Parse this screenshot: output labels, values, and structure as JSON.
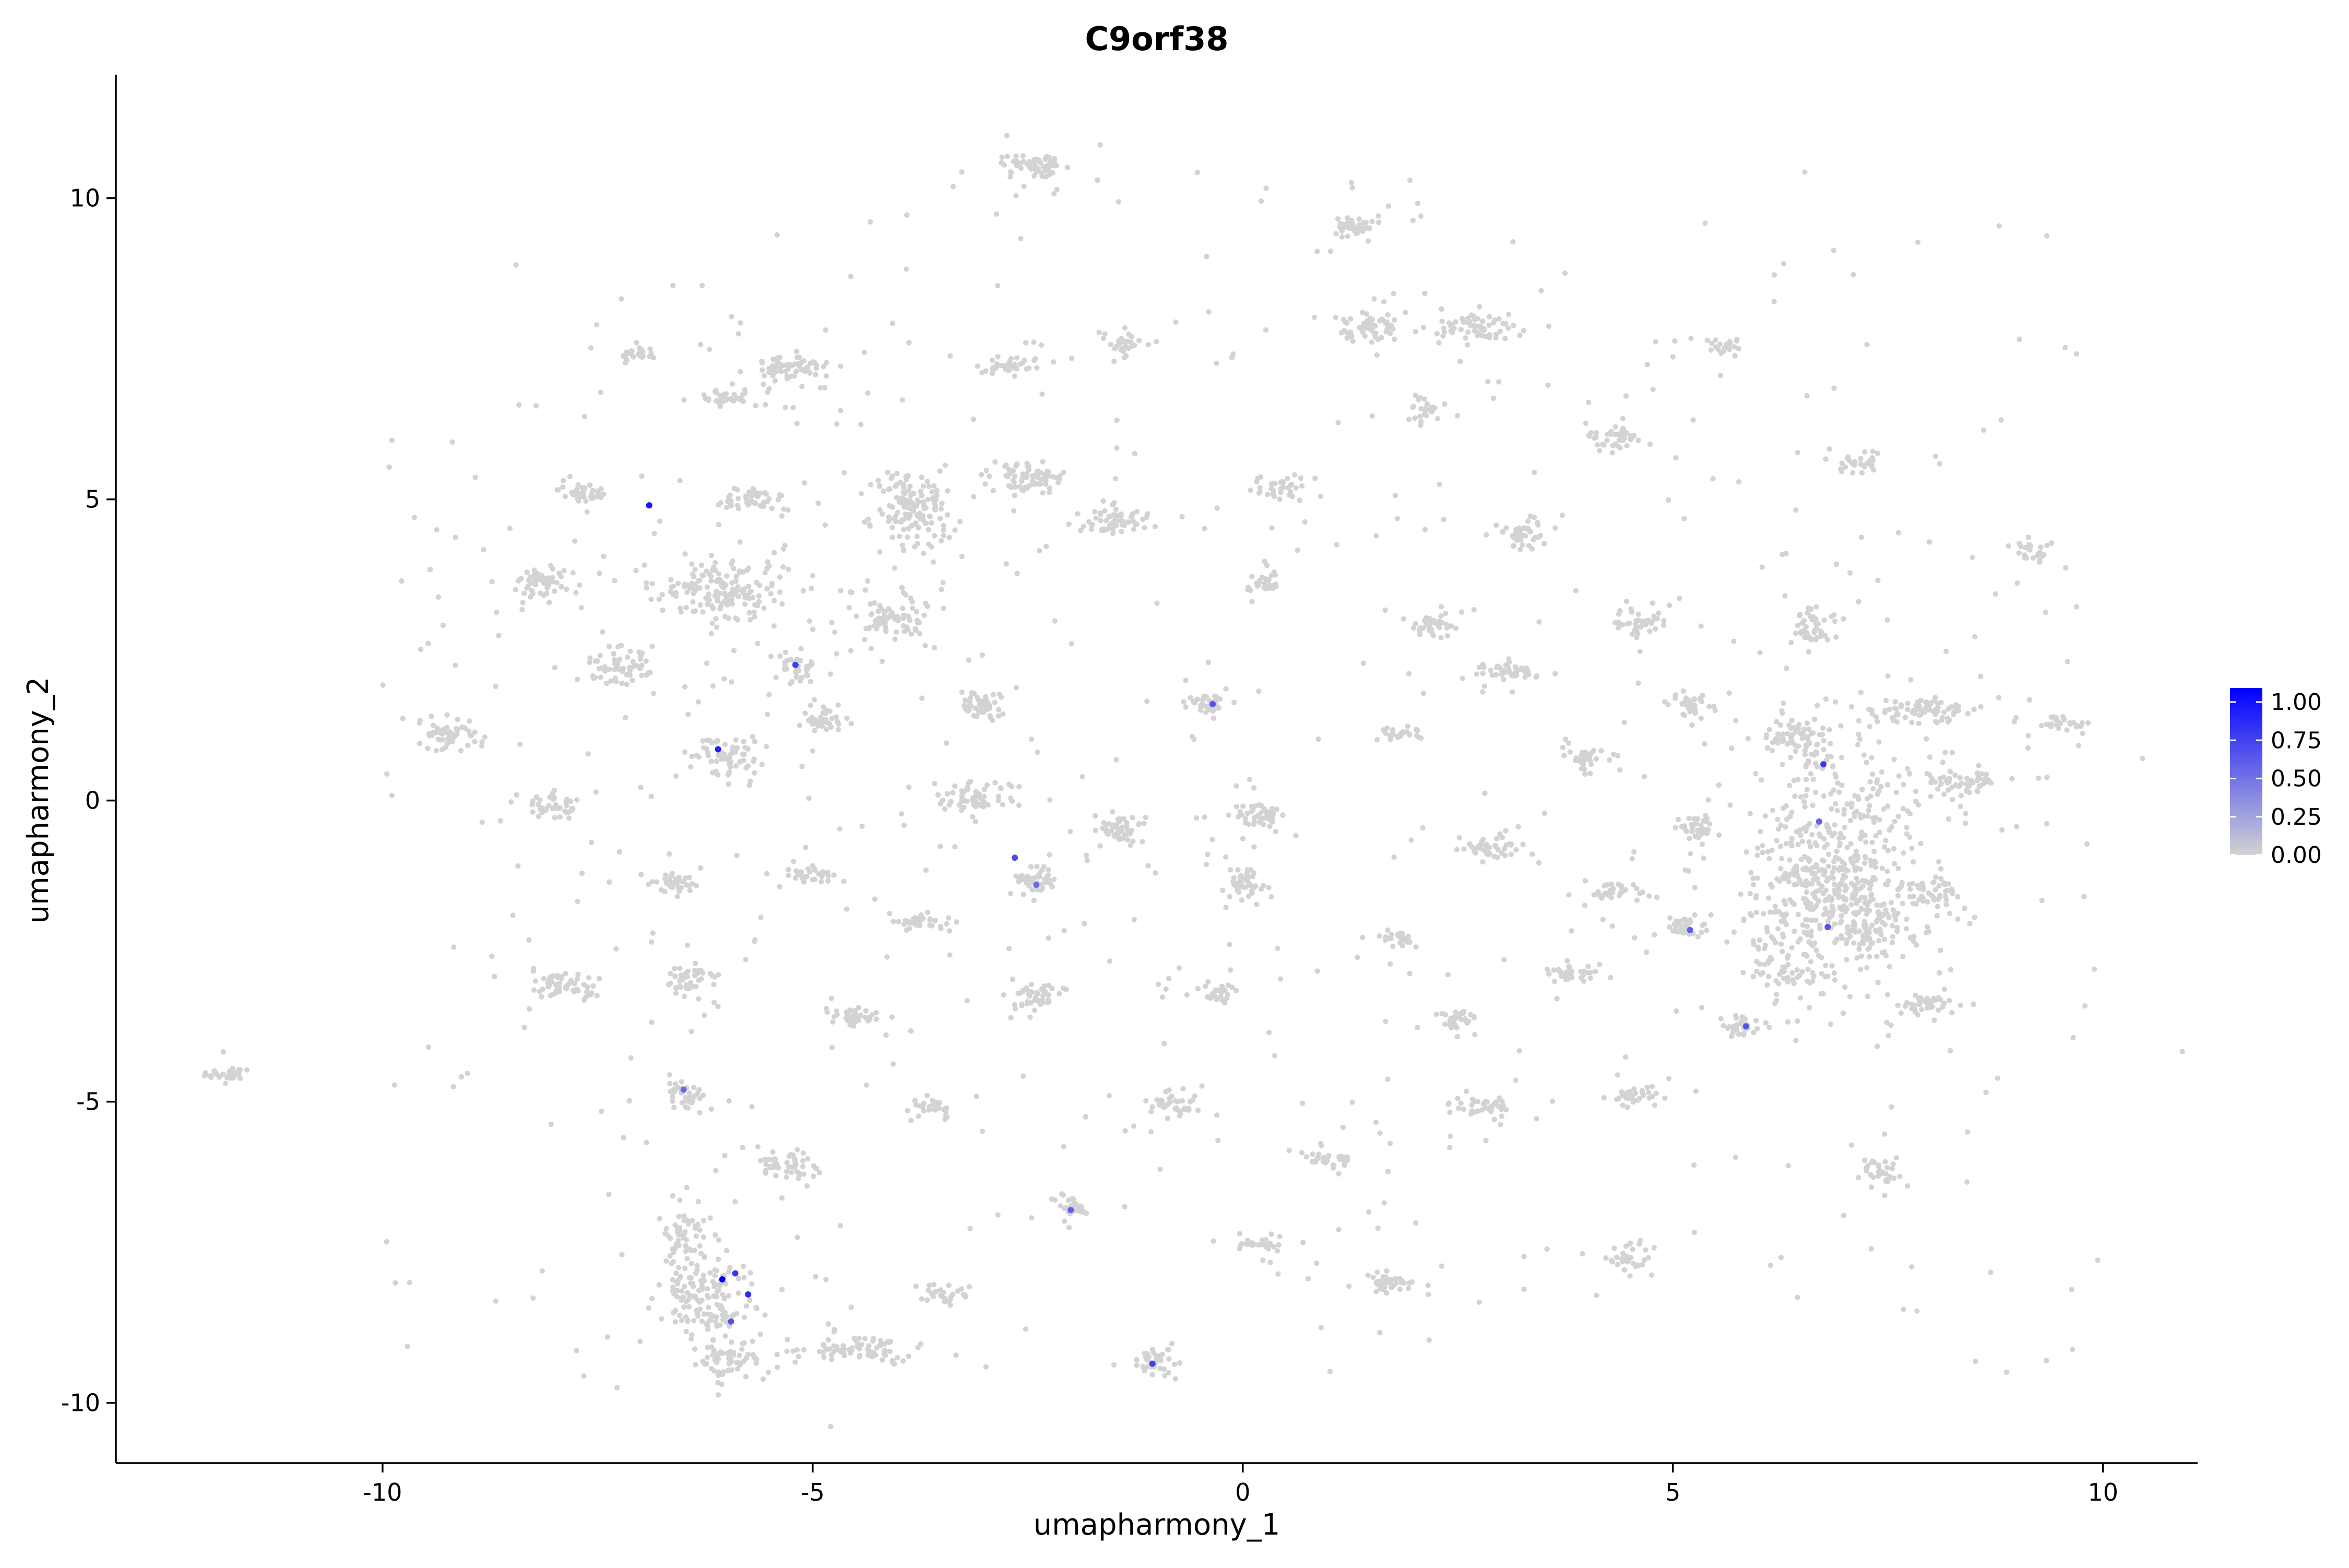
{
  "chart_data": {
    "type": "scatter",
    "title": "C9orf38",
    "xlabel": "umapharmony_1",
    "ylabel": "umapharmony_2",
    "xlim": [
      -13.1,
      11.1
    ],
    "ylim": [
      -11.0,
      12.05
    ],
    "x_ticks": [
      -10,
      -5,
      0,
      5,
      10
    ],
    "x_tick_labels": [
      "-10",
      "-5",
      "0",
      "5",
      "10"
    ],
    "y_ticks": [
      -10,
      -5,
      0,
      5,
      10
    ],
    "y_tick_labels": [
      "-10",
      "-5",
      "0",
      "5",
      "10"
    ],
    "grid": false,
    "legend": {
      "placement": "right",
      "ticks": [
        1.0,
        0.75,
        0.5,
        0.25,
        0.0
      ],
      "tick_labels": [
        "1.00",
        "0.75",
        "0.50",
        "0.25",
        "0.00"
      ],
      "range": [
        0,
        1.0
      ],
      "low_color": "#d3d3d3",
      "high_color": "#0000ff"
    },
    "colors": {
      "low": "#d3d3d3",
      "high": "#0000ff"
    },
    "clusters": [
      {
        "cx": -11.8,
        "cy": -4.55,
        "sx": 0.12,
        "sy": 0.07,
        "n": 30
      },
      {
        "cx": -9.25,
        "cy": 1.05,
        "sx": 0.2,
        "sy": 0.12,
        "n": 50
      },
      {
        "cx": -8.1,
        "cy": 3.6,
        "sx": 0.15,
        "sy": 0.15,
        "n": 55
      },
      {
        "cx": -8.0,
        "cy": -0.1,
        "sx": 0.15,
        "sy": 0.1,
        "n": 40
      },
      {
        "cx": -7.9,
        "cy": -3.1,
        "sx": 0.2,
        "sy": 0.12,
        "n": 55
      },
      {
        "cx": -7.7,
        "cy": 5.1,
        "sx": 0.12,
        "sy": 0.07,
        "n": 35
      },
      {
        "cx": -7.3,
        "cy": 2.25,
        "sx": 0.2,
        "sy": 0.15,
        "n": 60
      },
      {
        "cx": -7.0,
        "cy": 7.4,
        "sx": 0.13,
        "sy": 0.06,
        "n": 25
      },
      {
        "cx": -6.6,
        "cy": -1.4,
        "sx": 0.12,
        "sy": 0.1,
        "n": 35
      },
      {
        "cx": -6.4,
        "cy": -3.0,
        "sx": 0.15,
        "sy": 0.15,
        "n": 45
      },
      {
        "cx": -6.5,
        "cy": -4.9,
        "sx": 0.12,
        "sy": 0.12,
        "n": 35
      },
      {
        "cx": -6.1,
        "cy": 3.5,
        "sx": 0.35,
        "sy": 0.25,
        "n": 170
      },
      {
        "cx": -6.0,
        "cy": 0.7,
        "sx": 0.2,
        "sy": 0.18,
        "n": 60
      },
      {
        "cx": -6.0,
        "cy": 6.7,
        "sx": 0.2,
        "sy": 0.08,
        "n": 35
      },
      {
        "cx": -5.7,
        "cy": 5.0,
        "sx": 0.15,
        "sy": 0.1,
        "n": 45
      },
      {
        "cx": -6.2,
        "cy": -8.2,
        "sx": 0.25,
        "sy": 0.35,
        "n": 140
      },
      {
        "cx": -6.5,
        "cy": -7.2,
        "sx": 0.1,
        "sy": 0.3,
        "n": 50
      },
      {
        "cx": -6.0,
        "cy": -9.3,
        "sx": 0.2,
        "sy": 0.15,
        "n": 55
      },
      {
        "cx": -5.3,
        "cy": 7.2,
        "sx": 0.22,
        "sy": 0.12,
        "n": 60
      },
      {
        "cx": -5.2,
        "cy": 2.2,
        "sx": 0.12,
        "sy": 0.12,
        "n": 35
      },
      {
        "cx": -5.0,
        "cy": -1.2,
        "sx": 0.12,
        "sy": 0.07,
        "n": 30
      },
      {
        "cx": -5.3,
        "cy": -6.05,
        "sx": 0.2,
        "sy": 0.12,
        "n": 45
      },
      {
        "cx": -4.5,
        "cy": -9.1,
        "sx": 0.35,
        "sy": 0.12,
        "n": 75
      },
      {
        "cx": -4.9,
        "cy": 1.3,
        "sx": 0.12,
        "sy": 0.12,
        "n": 35
      },
      {
        "cx": -4.5,
        "cy": -3.6,
        "sx": 0.13,
        "sy": 0.08,
        "n": 35
      },
      {
        "cx": -4.1,
        "cy": 3.0,
        "sx": 0.22,
        "sy": 0.18,
        "n": 75
      },
      {
        "cx": -3.85,
        "cy": 4.85,
        "sx": 0.25,
        "sy": 0.35,
        "n": 150
      },
      {
        "cx": -3.7,
        "cy": -2.0,
        "sx": 0.15,
        "sy": 0.07,
        "n": 35
      },
      {
        "cx": -3.6,
        "cy": -5.1,
        "sx": 0.1,
        "sy": 0.08,
        "n": 25
      },
      {
        "cx": -3.5,
        "cy": -8.2,
        "sx": 0.13,
        "sy": 0.07,
        "n": 25
      },
      {
        "cx": -3.1,
        "cy": 1.6,
        "sx": 0.13,
        "sy": 0.1,
        "n": 40
      },
      {
        "cx": -3.1,
        "cy": 0.05,
        "sx": 0.2,
        "sy": 0.15,
        "n": 65
      },
      {
        "cx": -2.7,
        "cy": 7.2,
        "sx": 0.15,
        "sy": 0.08,
        "n": 40
      },
      {
        "cx": -2.5,
        "cy": 5.35,
        "sx": 0.22,
        "sy": 0.12,
        "n": 65
      },
      {
        "cx": -2.4,
        "cy": 10.55,
        "sx": 0.18,
        "sy": 0.1,
        "n": 55
      },
      {
        "cx": -2.4,
        "cy": -1.35,
        "sx": 0.15,
        "sy": 0.12,
        "n": 45
      },
      {
        "cx": -2.4,
        "cy": -3.25,
        "sx": 0.15,
        "sy": 0.12,
        "n": 45
      },
      {
        "cx": -2.0,
        "cy": -6.75,
        "sx": 0.1,
        "sy": 0.1,
        "n": 25
      },
      {
        "cx": -1.5,
        "cy": 4.65,
        "sx": 0.22,
        "sy": 0.1,
        "n": 55
      },
      {
        "cx": -1.4,
        "cy": 7.6,
        "sx": 0.15,
        "sy": 0.1,
        "n": 30
      },
      {
        "cx": -1.4,
        "cy": -0.5,
        "sx": 0.15,
        "sy": 0.12,
        "n": 45
      },
      {
        "cx": -0.8,
        "cy": -5.05,
        "sx": 0.15,
        "sy": 0.1,
        "n": 40
      },
      {
        "cx": -1.0,
        "cy": -9.3,
        "sx": 0.12,
        "sy": 0.12,
        "n": 35
      },
      {
        "cx": -0.45,
        "cy": 1.6,
        "sx": 0.12,
        "sy": 0.08,
        "n": 35
      },
      {
        "cx": -0.3,
        "cy": -3.2,
        "sx": 0.1,
        "sy": 0.08,
        "n": 25
      },
      {
        "cx": 0.0,
        "cy": -1.4,
        "sx": 0.12,
        "sy": 0.15,
        "n": 45
      },
      {
        "cx": 0.25,
        "cy": 3.6,
        "sx": 0.1,
        "sy": 0.08,
        "n": 30
      },
      {
        "cx": 0.2,
        "cy": -0.25,
        "sx": 0.15,
        "sy": 0.1,
        "n": 45
      },
      {
        "cx": 0.4,
        "cy": 5.2,
        "sx": 0.15,
        "sy": 0.08,
        "n": 35
      },
      {
        "cx": 0.2,
        "cy": -7.35,
        "sx": 0.13,
        "sy": 0.06,
        "n": 25
      },
      {
        "cx": 1.0,
        "cy": -5.95,
        "sx": 0.15,
        "sy": 0.1,
        "n": 35
      },
      {
        "cx": 1.3,
        "cy": 9.55,
        "sx": 0.12,
        "sy": 0.1,
        "n": 40
      },
      {
        "cx": 1.5,
        "cy": 7.85,
        "sx": 0.18,
        "sy": 0.15,
        "n": 60
      },
      {
        "cx": 1.8,
        "cy": 1.1,
        "sx": 0.12,
        "sy": 0.06,
        "n": 25
      },
      {
        "cx": 1.8,
        "cy": -2.3,
        "sx": 0.1,
        "sy": 0.08,
        "n": 25
      },
      {
        "cx": 1.7,
        "cy": -8.0,
        "sx": 0.2,
        "sy": 0.08,
        "n": 40
      },
      {
        "cx": 2.1,
        "cy": 6.45,
        "sx": 0.1,
        "sy": 0.1,
        "n": 25
      },
      {
        "cx": 2.2,
        "cy": 2.9,
        "sx": 0.15,
        "sy": 0.08,
        "n": 40
      },
      {
        "cx": 2.5,
        "cy": -3.65,
        "sx": 0.12,
        "sy": 0.08,
        "n": 30
      },
      {
        "cx": 2.7,
        "cy": 7.85,
        "sx": 0.2,
        "sy": 0.12,
        "n": 55
      },
      {
        "cx": 2.8,
        "cy": -5.1,
        "sx": 0.18,
        "sy": 0.1,
        "n": 40
      },
      {
        "cx": 2.9,
        "cy": -0.8,
        "sx": 0.18,
        "sy": 0.1,
        "n": 45
      },
      {
        "cx": 3.1,
        "cy": 2.15,
        "sx": 0.18,
        "sy": 0.08,
        "n": 40
      },
      {
        "cx": 3.3,
        "cy": 4.4,
        "sx": 0.15,
        "sy": 0.12,
        "n": 40
      },
      {
        "cx": 3.8,
        "cy": -2.85,
        "sx": 0.15,
        "sy": 0.08,
        "n": 35
      },
      {
        "cx": 4.0,
        "cy": 0.75,
        "sx": 0.12,
        "sy": 0.1,
        "n": 30
      },
      {
        "cx": 4.3,
        "cy": 6.05,
        "sx": 0.18,
        "sy": 0.1,
        "n": 40
      },
      {
        "cx": 4.3,
        "cy": -1.5,
        "sx": 0.15,
        "sy": 0.07,
        "n": 30
      },
      {
        "cx": 4.5,
        "cy": -7.6,
        "sx": 0.1,
        "sy": 0.12,
        "n": 30
      },
      {
        "cx": 4.6,
        "cy": -4.9,
        "sx": 0.13,
        "sy": 0.08,
        "n": 30
      },
      {
        "cx": 4.6,
        "cy": 2.95,
        "sx": 0.15,
        "sy": 0.12,
        "n": 40
      },
      {
        "cx": 5.2,
        "cy": 1.6,
        "sx": 0.12,
        "sy": 0.1,
        "n": 35
      },
      {
        "cx": 5.3,
        "cy": -0.5,
        "sx": 0.12,
        "sy": 0.12,
        "n": 35
      },
      {
        "cx": 5.2,
        "cy": -2.1,
        "sx": 0.15,
        "sy": 0.08,
        "n": 35
      },
      {
        "cx": 5.8,
        "cy": -3.75,
        "sx": 0.12,
        "sy": 0.08,
        "n": 30
      },
      {
        "cx": 5.6,
        "cy": 7.55,
        "sx": 0.1,
        "sy": 0.07,
        "n": 20
      },
      {
        "cx": 6.3,
        "cy": -2.6,
        "sx": 0.2,
        "sy": 0.35,
        "n": 60
      },
      {
        "cx": 6.6,
        "cy": 2.9,
        "sx": 0.12,
        "sy": 0.18,
        "n": 45
      },
      {
        "cx": 6.5,
        "cy": 1.0,
        "sx": 0.2,
        "sy": 0.25,
        "n": 70
      },
      {
        "cx": 6.9,
        "cy": -0.8,
        "sx": 0.55,
        "sy": 1.0,
        "n": 340
      },
      {
        "cx": 6.9,
        "cy": -1.6,
        "sx": 0.45,
        "sy": 0.45,
        "n": 200
      },
      {
        "cx": 7.1,
        "cy": 5.6,
        "sx": 0.15,
        "sy": 0.07,
        "n": 30
      },
      {
        "cx": 7.3,
        "cy": -2.2,
        "sx": 0.15,
        "sy": 0.2,
        "n": 45
      },
      {
        "cx": 7.4,
        "cy": -6.2,
        "sx": 0.12,
        "sy": 0.12,
        "n": 35
      },
      {
        "cx": 7.9,
        "cy": -3.4,
        "sx": 0.15,
        "sy": 0.08,
        "n": 35
      },
      {
        "cx": 7.9,
        "cy": 1.5,
        "sx": 0.3,
        "sy": 0.12,
        "n": 75
      },
      {
        "cx": 8.0,
        "cy": -1.5,
        "sx": 0.15,
        "sy": 0.1,
        "n": 40
      },
      {
        "cx": 8.4,
        "cy": 0.3,
        "sx": 0.22,
        "sy": 0.12,
        "n": 55
      },
      {
        "cx": 9.2,
        "cy": 4.15,
        "sx": 0.1,
        "sy": 0.08,
        "n": 25
      },
      {
        "cx": 9.5,
        "cy": 1.3,
        "sx": 0.15,
        "sy": 0.06,
        "n": 25
      }
    ],
    "scattered_points": 380,
    "expressing_points": [
      {
        "x": -6.9,
        "y": 4.9,
        "value": 0.9
      },
      {
        "x": -6.1,
        "y": 0.85,
        "value": 0.85
      },
      {
        "x": -5.2,
        "y": 2.25,
        "value": 0.7
      },
      {
        "x": -6.5,
        "y": -4.8,
        "value": 0.5
      },
      {
        "x": -6.05,
        "y": -7.95,
        "value": 1.0
      },
      {
        "x": -5.9,
        "y": -7.85,
        "value": 0.75
      },
      {
        "x": -5.75,
        "y": -8.2,
        "value": 0.8
      },
      {
        "x": -5.95,
        "y": -8.65,
        "value": 0.6
      },
      {
        "x": -2.65,
        "y": -0.95,
        "value": 0.65
      },
      {
        "x": -2.4,
        "y": -1.4,
        "value": 0.5
      },
      {
        "x": -0.35,
        "y": 1.6,
        "value": 0.6
      },
      {
        "x": -1.05,
        "y": -9.35,
        "value": 0.7
      },
      {
        "x": -2.0,
        "y": -6.8,
        "value": 0.55
      },
      {
        "x": 6.75,
        "y": 0.6,
        "value": 0.75
      },
      {
        "x": 6.7,
        "y": -0.35,
        "value": 0.55
      },
      {
        "x": 6.8,
        "y": -2.1,
        "value": 0.6
      },
      {
        "x": 5.2,
        "y": -2.15,
        "value": 0.55
      },
      {
        "x": 5.85,
        "y": -3.75,
        "value": 0.6
      }
    ]
  }
}
